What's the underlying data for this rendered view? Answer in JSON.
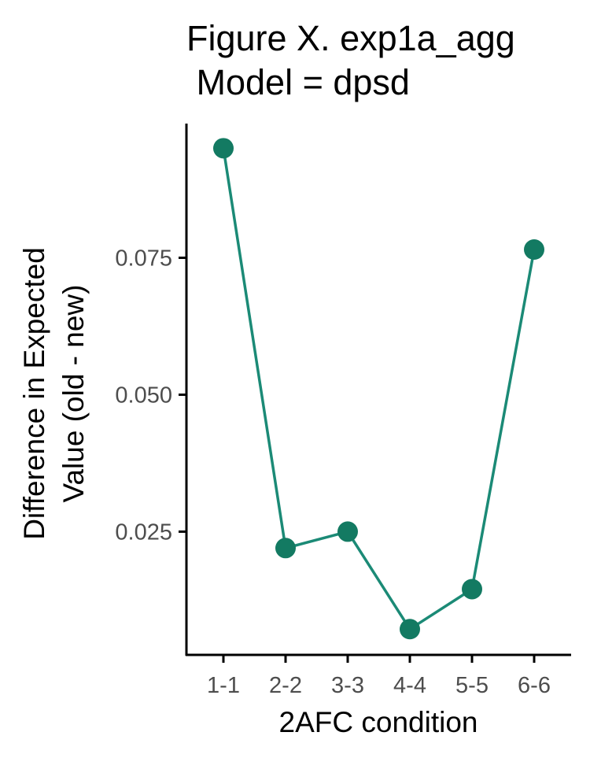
{
  "chart_data": {
    "type": "line",
    "title_lines": [
      "Figure X. exp1a_agg",
      " Model = dpsd"
    ],
    "xlabel": "2AFC condition",
    "ylabel_lines": [
      "Difference in Expected",
      "Value (old - new)"
    ],
    "categories": [
      "1-1",
      "2-2",
      "3-3",
      "4-4",
      "5-5",
      "6-6"
    ],
    "series": [
      {
        "values": [
          0.095,
          0.022,
          0.025,
          0.0072,
          0.0145,
          0.0765
        ]
      }
    ],
    "ylim": [
      0.0025,
      0.0995
    ],
    "yticks": [
      0.025,
      0.05,
      0.075
    ],
    "ytick_labels": [
      "0.025",
      "0.050",
      "0.075"
    ],
    "grid": false,
    "legend": "none",
    "colors": {
      "line": "#1b8a76",
      "point": "#137a62",
      "axis": "#000000",
      "tick_text": "#4d4d4d"
    }
  }
}
